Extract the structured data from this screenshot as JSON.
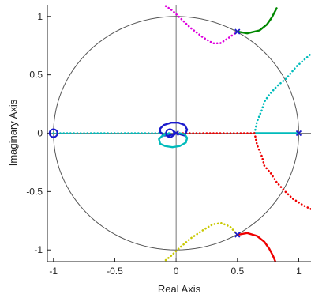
{
  "chart_data": {
    "type": "line",
    "title": "",
    "xlabel": "Real Axis",
    "ylabel": "Imaginary Axis",
    "xlim": [
      -1.05,
      1.1
    ],
    "ylim": [
      -1.1,
      1.1
    ],
    "x_ticks": [
      -1,
      -0.5,
      0,
      0.5,
      1
    ],
    "x_tick_labels": [
      "-1",
      "-0.5",
      "0",
      "0.5",
      "1"
    ],
    "y_ticks": [
      -1,
      -0.5,
      0,
      0.5,
      1
    ],
    "y_tick_labels": [
      "-1",
      "-0.5",
      "0",
      "0.5",
      "1"
    ],
    "grid": false,
    "unit_circle": {
      "center": [
        0,
        0
      ],
      "radius": 1,
      "color": "#555555"
    },
    "poles": [
      {
        "x": 0.5,
        "y": 0.87
      },
      {
        "x": 0.5,
        "y": -0.87
      },
      {
        "x": 1.0,
        "y": 0.0
      },
      {
        "x": 0.0,
        "y": 0.0
      }
    ],
    "zeros": [
      {
        "x": -1.0,
        "y": 0.0
      },
      {
        "x": -0.05,
        "y": 0.0
      }
    ],
    "series": [
      {
        "color": "#008800",
        "style": "solid",
        "x": [
          0.5,
          0.58,
          0.68,
          0.74,
          0.78,
          0.82
        ],
        "y": [
          0.87,
          0.855,
          0.88,
          0.93,
          0.99,
          1.07
        ]
      },
      {
        "color": "#dd00dd",
        "style": "dotted",
        "x": [
          0.5,
          0.42,
          0.36,
          0.3,
          0.22,
          0.12,
          0.04,
          -0.03,
          -0.1
        ],
        "y": [
          0.87,
          0.81,
          0.77,
          0.77,
          0.82,
          0.9,
          0.98,
          1.05,
          1.1
        ]
      },
      {
        "color": "#ee0000",
        "style": "solid",
        "x": [
          0.5,
          0.58,
          0.66,
          0.72,
          0.76,
          0.79,
          0.81
        ],
        "y": [
          -0.87,
          -0.855,
          -0.88,
          -0.93,
          -0.99,
          -1.05,
          -1.1
        ]
      },
      {
        "color": "#c8c800",
        "style": "dotted",
        "x": [
          0.5,
          0.44,
          0.37,
          0.3,
          0.22,
          0.12,
          0.03,
          -0.04,
          -0.1
        ],
        "y": [
          -0.87,
          -0.8,
          -0.77,
          -0.78,
          -0.83,
          -0.9,
          -0.98,
          -1.05,
          -1.1
        ]
      },
      {
        "color": "#00bbbb",
        "style": "dotted",
        "x": [
          0.64,
          0.66,
          0.7,
          0.72,
          0.76,
          0.82,
          0.9,
          0.98,
          1.1
        ],
        "y": [
          0.0,
          0.1,
          0.2,
          0.27,
          0.33,
          0.4,
          0.47,
          0.57,
          0.68
        ]
      },
      {
        "color": "#ee0000",
        "style": "dotted",
        "x": [
          0.64,
          0.66,
          0.7,
          0.72,
          0.77,
          0.82,
          0.88,
          0.95,
          1.04,
          1.1
        ],
        "y": [
          0.0,
          -0.1,
          -0.2,
          -0.28,
          -0.34,
          -0.42,
          -0.49,
          -0.56,
          -0.62,
          -0.65
        ]
      },
      {
        "color": "#00bbbb",
        "style": "solid",
        "x": [
          0.64,
          0.75,
          0.85,
          0.95,
          1.0
        ],
        "y": [
          0.0,
          0.0,
          0.0,
          0.0,
          0.0
        ]
      },
      {
        "color": "#00bbbb",
        "style": "dotted",
        "x": [
          -1.0,
          -0.8,
          -0.6,
          -0.4,
          -0.2,
          -0.05
        ],
        "y": [
          0.0,
          0.0,
          0.0,
          0.0,
          0.0,
          0.0
        ]
      },
      {
        "color": "#ee0000",
        "style": "dotted",
        "x": [
          0.0,
          0.15,
          0.3,
          0.45,
          0.55,
          0.64
        ],
        "y": [
          0.0,
          0.0,
          0.0,
          0.0,
          0.0,
          0.0
        ]
      },
      {
        "color": "#1a1acc",
        "style": "solid",
        "x": [
          0.0,
          0.07,
          0.09,
          0.07,
          0.02,
          -0.04,
          -0.1,
          -0.13,
          -0.13,
          -0.1,
          -0.06,
          -0.02,
          0.0
        ],
        "y": [
          0.0,
          -0.02,
          0.03,
          0.07,
          0.09,
          0.09,
          0.07,
          0.04,
          0.01,
          -0.02,
          -0.02,
          -0.01,
          0.0
        ]
      },
      {
        "color": "#00bbbb",
        "style": "solid",
        "x": [
          -0.05,
          -0.11,
          -0.14,
          -0.13,
          -0.09,
          -0.03,
          0.03,
          0.08,
          0.09,
          0.07,
          0.03
        ],
        "y": [
          0.0,
          -0.02,
          -0.05,
          -0.09,
          -0.11,
          -0.12,
          -0.11,
          -0.08,
          -0.04,
          -0.01,
          0.0
        ]
      }
    ]
  }
}
